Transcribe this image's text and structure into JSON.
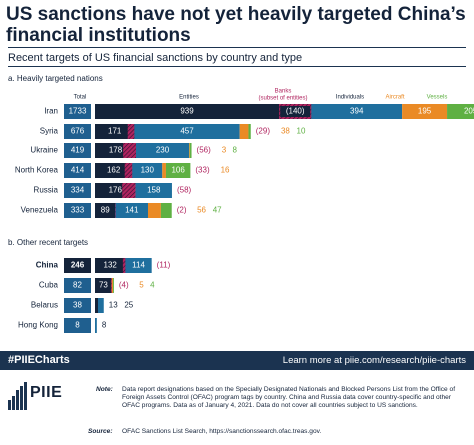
{
  "title": "US sanctions have not yet heavily targeted China’s financial institutions",
  "subtitle": "Recent targets of US financial sanctions by country and type",
  "section_a": "a. Heavily targeted nations",
  "section_b": "b. Other recent targets",
  "footer": {
    "hashtag": "#PIIECharts",
    "learn_more": "Learn more at piie.com/research/piie-charts",
    "logo_text": "PIIE",
    "note_label": "Note:",
    "note": "Data report designations based on the Specially Designated Nationals and Blocked Persons List from the Office of Foreign Assets Control (OFAC) program tags by country. China and Russia data cover country-specific and other OFAC programs. Data as of January 4, 2021. Data do not cover all countries subject to US sanctions.",
    "source_label": "Source:",
    "source": "OFAC Sanctions List Search, https://sanctionssearch.ofac.treas.gov."
  },
  "colors": {
    "navy": "#14233a",
    "entities": "#14233a",
    "banks": "#b0245f",
    "individuals": "#1f6f9e",
    "aircraft": "#ea8a25",
    "vessels": "#5fb043",
    "total_box": "#1f5f8f",
    "footer_band": "#1b3350"
  },
  "chart_data": [
    {
      "type": "bar",
      "subtype": "stacked-horizontal",
      "panel": "a. Heavily targeted nations",
      "total_label": "Total",
      "series_labels": {
        "entities": "Entities",
        "banks": "Banks",
        "banks_note": "(subset of entities)",
        "individuals": "Individuals",
        "aircraft": "Aircraft",
        "vessels": "Vessels"
      },
      "categories": [
        "Iran",
        "Syria",
        "Ukraine",
        "North Korea",
        "Russia",
        "Venezuela"
      ],
      "totals": [
        1733,
        676,
        419,
        414,
        334,
        333
      ],
      "series": [
        {
          "name": "Entities",
          "values": [
            939,
            171,
            178,
            162,
            176,
            89
          ]
        },
        {
          "name": "Banks",
          "values": [
            140,
            29,
            56,
            33,
            58,
            2
          ]
        },
        {
          "name": "Individuals",
          "values": [
            394,
            457,
            230,
            130,
            158,
            141
          ]
        },
        {
          "name": "Aircraft",
          "values": [
            195,
            38,
            3,
            16,
            0,
            56
          ]
        },
        {
          "name": "Vessels",
          "values": [
            205,
            10,
            8,
            106,
            0,
            47
          ]
        }
      ],
      "bar_labels": [
        {
          "entities": "939",
          "banks": "(140)",
          "individuals": "394",
          "aircraft": "195",
          "vessels": "205"
        },
        {
          "entities": "171",
          "individuals": "457",
          "banks_out": "(29)",
          "aircraft_out": "38",
          "vessels_out": "10"
        },
        {
          "entities": "178",
          "individuals": "230",
          "banks_out": "(56)",
          "aircraft_out": "3",
          "vessels_out": "8"
        },
        {
          "entities": "162",
          "individuals": "130",
          "vessels": "106",
          "banks_out": "(33)",
          "aircraft_out": "16"
        },
        {
          "entities": "176",
          "individuals": "158",
          "banks_out": "(58)"
        },
        {
          "entities": "89",
          "individuals": "141",
          "banks_out": "(2)",
          "aircraft_out": "56",
          "vessels_out": "47"
        }
      ]
    },
    {
      "type": "bar",
      "subtype": "stacked-horizontal",
      "panel": "b. Other recent targets",
      "categories": [
        "China",
        "Cuba",
        "Belarus",
        "Hong Kong"
      ],
      "totals": [
        246,
        82,
        38,
        8
      ],
      "series": [
        {
          "name": "Entities",
          "values": [
            132,
            73,
            13,
            0
          ]
        },
        {
          "name": "Banks",
          "values": [
            11,
            4,
            0,
            0
          ]
        },
        {
          "name": "Individuals",
          "values": [
            114,
            0,
            25,
            8
          ]
        },
        {
          "name": "Aircraft",
          "values": [
            0,
            5,
            0,
            0
          ]
        },
        {
          "name": "Vessels",
          "values": [
            0,
            4,
            0,
            0
          ]
        }
      ],
      "bar_labels": [
        {
          "entities": "132",
          "individuals": "114",
          "banks_out": "(11)"
        },
        {
          "entities": "73",
          "banks_out": "(4)",
          "aircraft_out": "5",
          "vessels_out": "4"
        },
        {
          "entities_out": "13",
          "individuals_out": "25"
        },
        {
          "individuals_out": "8"
        }
      ]
    }
  ]
}
